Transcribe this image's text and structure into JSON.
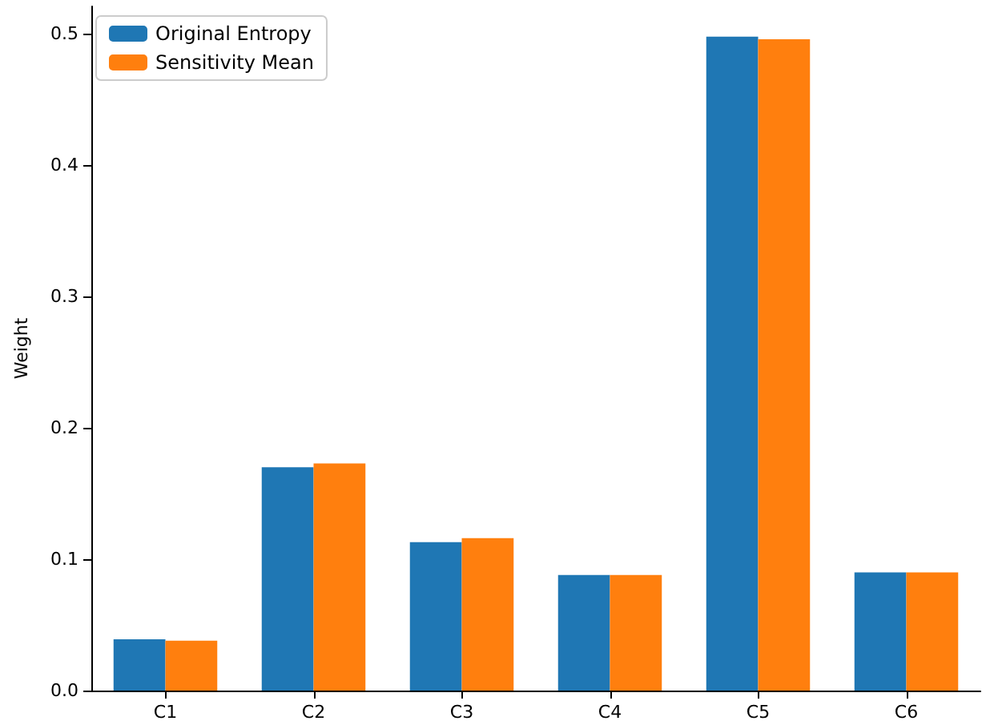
{
  "chart_data": {
    "type": "bar",
    "ylabel": "Weight",
    "categories": [
      "C1",
      "C2",
      "C3",
      "C4",
      "C5",
      "C6"
    ],
    "series": [
      {
        "name": "Original Entropy",
        "color": "#1f77b4",
        "values": [
          0.039,
          0.17,
          0.113,
          0.088,
          0.498,
          0.09
        ]
      },
      {
        "name": "Sensitivity Mean",
        "color": "#ff7f0e",
        "values": [
          0.038,
          0.173,
          0.116,
          0.088,
          0.496,
          0.09
        ]
      }
    ],
    "ylim": [
      0,
      0.521
    ],
    "yticks": [
      {
        "value": 0,
        "label": "0.0"
      },
      0.1,
      0.2,
      0.3,
      0.4,
      0.5
    ],
    "grid": false,
    "legend": "top left"
  }
}
